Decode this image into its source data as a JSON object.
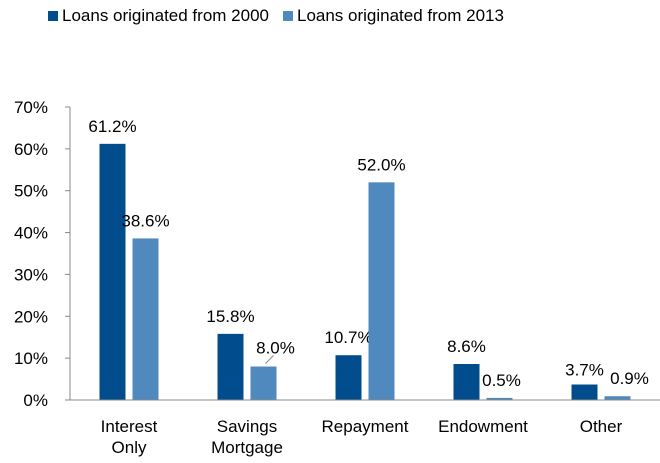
{
  "colors": {
    "series_1": "#004C8C",
    "series_2": "#4F89BD",
    "axis": "#888888"
  },
  "chart_data": {
    "type": "bar",
    "title": "",
    "xlabel": "",
    "ylabel": "",
    "ylim": [
      0,
      70
    ],
    "yticks": [
      "0%",
      "10%",
      "20%",
      "30%",
      "40%",
      "50%",
      "60%",
      "70%"
    ],
    "categories": [
      [
        "Interest",
        "Only"
      ],
      [
        "Savings",
        "Mortgage"
      ],
      [
        "Repayment"
      ],
      [
        "Endowment"
      ],
      [
        "Other"
      ]
    ],
    "series": [
      {
        "name": "Loans originated from 2000",
        "values": [
          61.2,
          15.8,
          10.7,
          8.6,
          3.7
        ],
        "labels": [
          "61.2%",
          "15.8%",
          "10.7%",
          "8.6%",
          "3.7%"
        ]
      },
      {
        "name": "Loans originated from 2013",
        "values": [
          38.6,
          8.0,
          52.0,
          0.5,
          0.9
        ],
        "labels": [
          "38.6%",
          "8.0%",
          "52.0%",
          "0.5%",
          "0.9%"
        ]
      }
    ],
    "legend_position": "top-left"
  }
}
